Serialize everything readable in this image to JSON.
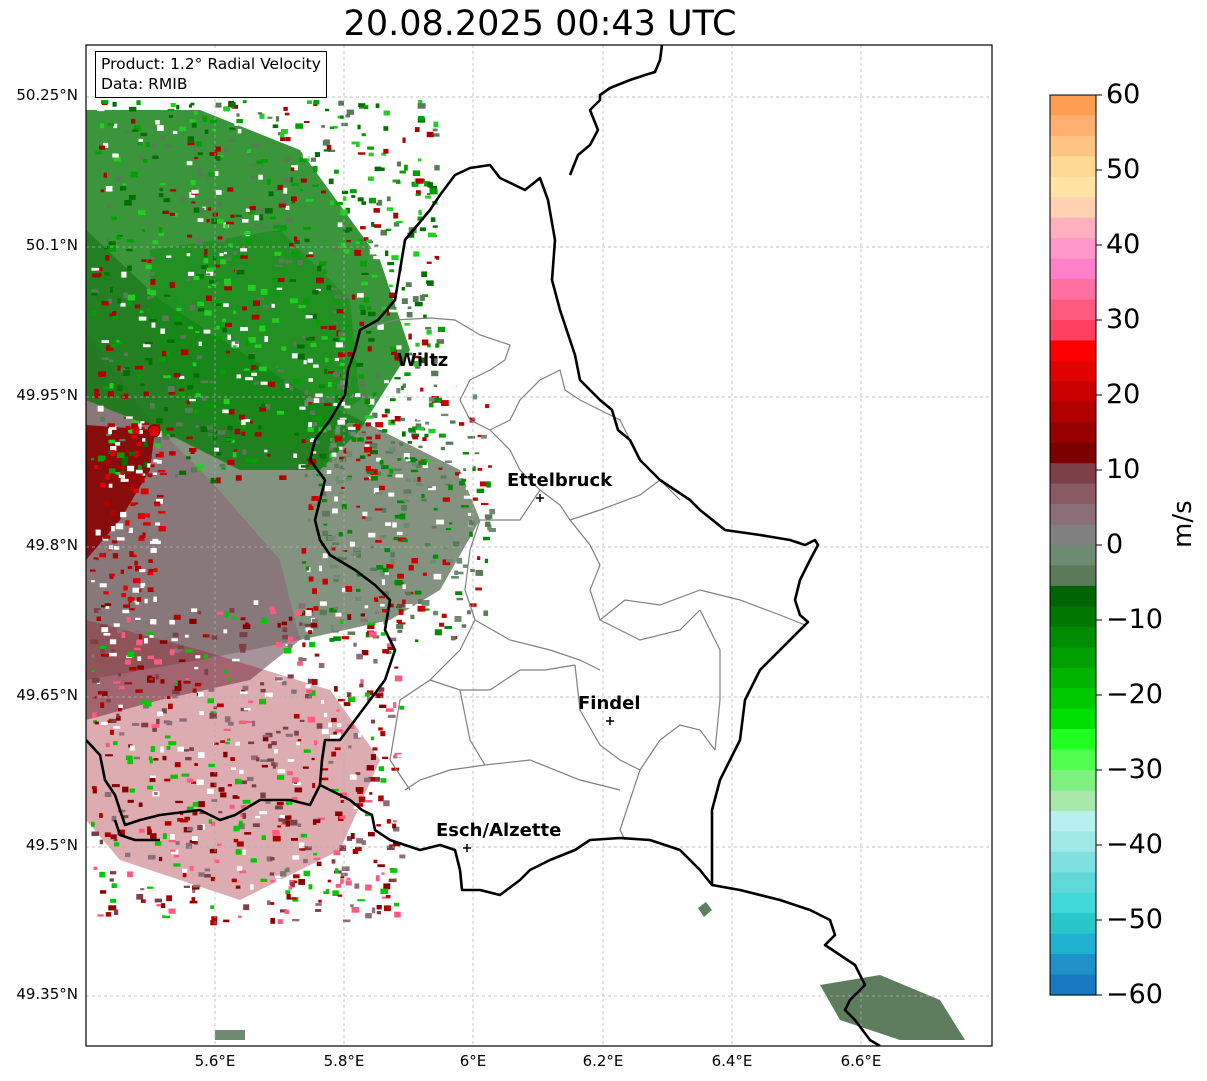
{
  "title": "20.08.2025 00:43 UTC",
  "infobox": {
    "product": "Product: 1.2° Radial Velocity",
    "data_source": "Data: RMIB"
  },
  "map": {
    "lat_ticks": [
      "50.25°N",
      "50.1°N",
      "49.95°N",
      "49.8°N",
      "49.65°N",
      "49.5°N",
      "49.35°N"
    ],
    "lon_ticks": [
      "5.6°E",
      "5.8°E",
      "6°E",
      "6.2°E",
      "6.4°E",
      "6.6°E"
    ],
    "extent": {
      "lon_min": 5.4,
      "lon_max": 6.8,
      "lat_min": 49.3,
      "lat_max": 50.3
    },
    "radar_site": {
      "lon": 5.51,
      "lat": 49.91,
      "color": "#e00000"
    },
    "cities": [
      {
        "name": "Wiltz",
        "lon": 5.93,
        "lat": 49.97
      },
      {
        "name": "Ettelbruck",
        "lon": 6.1,
        "lat": 49.85
      },
      {
        "name": "Findel",
        "lon": 6.21,
        "lat": 49.63
      },
      {
        "name": "Esch/Alzette",
        "lon": 5.99,
        "lat": 49.5
      }
    ]
  },
  "colorbar": {
    "unit": "m/s",
    "min": -60,
    "max": 60,
    "ticks": [
      "60",
      "50",
      "40",
      "30",
      "20",
      "10",
      "0",
      "−10",
      "−20",
      "−30",
      "−40",
      "−50",
      "−60"
    ],
    "colors_top_to_bottom": [
      "#ff9d52",
      "#ffb071",
      "#ffc484",
      "#ffd895",
      "#ffe4a5",
      "#ffd1b0",
      "#ffb0c0",
      "#ff98c8",
      "#ff80c8",
      "#ff70a0",
      "#ff5a80",
      "#ff4060",
      "#ff0000",
      "#e20000",
      "#c80000",
      "#b00000",
      "#960000",
      "#7d0000",
      "#7e4048",
      "#8a5a62",
      "#8c6e78",
      "#808080",
      "#6e8a70",
      "#5a7a5a",
      "#006400",
      "#007800",
      "#008c00",
      "#00a000",
      "#00b400",
      "#00c800",
      "#00e000",
      "#20ff20",
      "#50ff50",
      "#80f080",
      "#a8e8a8",
      "#b8f0f0",
      "#a0e8e8",
      "#80e0e0",
      "#60d8d8",
      "#40d8d8",
      "#28c8c8",
      "#20b0d0",
      "#2090c8",
      "#1878c0"
    ]
  }
}
